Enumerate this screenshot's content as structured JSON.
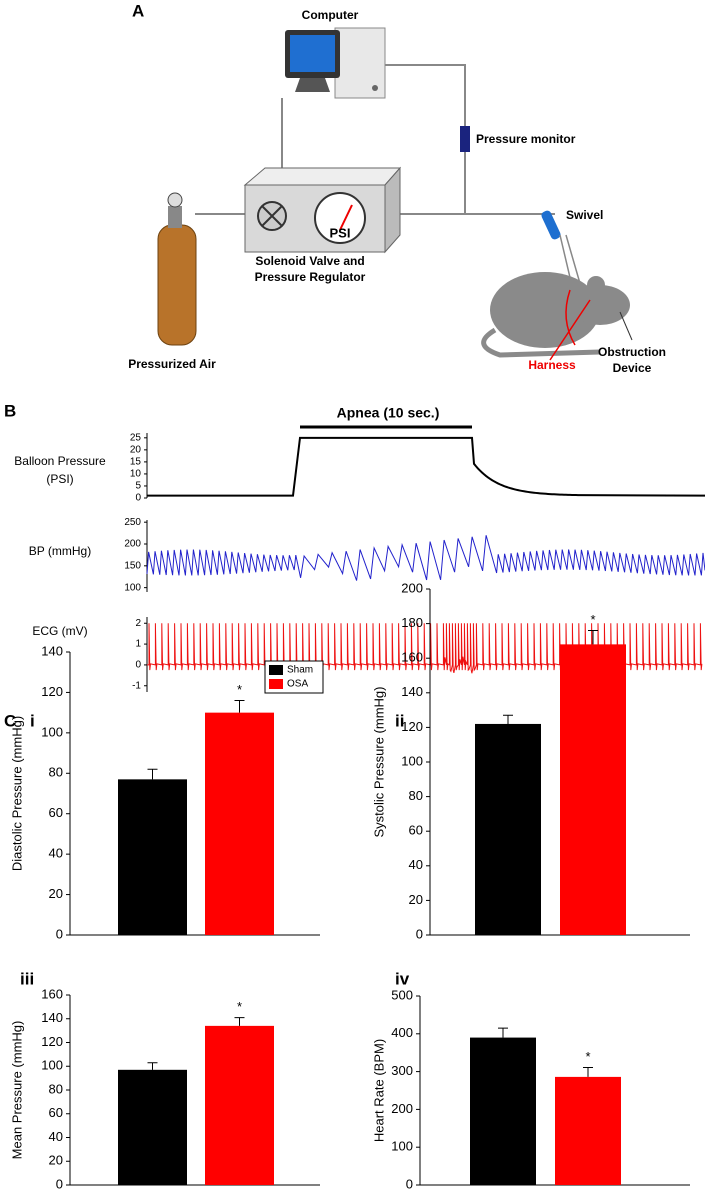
{
  "panel_a": {
    "label": "A",
    "computer": "Computer",
    "pressure_monitor": "Pressure monitor",
    "swivel": "Swivel",
    "valve_line1": "Solenoid Valve and",
    "valve_line2": "Pressure Regulator",
    "gauge": "PSI",
    "air": "Pressurized Air",
    "harness": "Harness",
    "device_line1": "Obstruction",
    "device_line2": "Device"
  },
  "panel_b": {
    "label": "B",
    "apnea": "Apnea (10 sec.)",
    "traces": [
      {
        "label_lines": [
          "Balloon Pressure",
          "(PSI)"
        ],
        "ylim": [
          0,
          27
        ],
        "yticks": [
          0,
          5,
          10,
          15,
          20,
          25
        ],
        "color": "#000000"
      },
      {
        "label_lines": [
          "BP (mmHg)"
        ],
        "ylim": [
          90,
          255
        ],
        "yticks": [
          100,
          150,
          200,
          250
        ],
        "color": "#2222cc"
      },
      {
        "label_lines": [
          "ECG (mV)"
        ],
        "ylim": [
          -1.3,
          2.3
        ],
        "yticks": [
          -1,
          0,
          1,
          2
        ],
        "color": "#ee1111"
      }
    ]
  },
  "panel_c_label": "C",
  "chart_data": [
    {
      "type": "bar",
      "panel": "i",
      "y_label": "Diastolic Pressure (mmHg)",
      "categories": [
        null
      ],
      "ylim": [
        0,
        140
      ],
      "yticks": [
        0,
        20,
        40,
        60,
        80,
        100,
        120,
        140
      ],
      "series": [
        {
          "name": "Sham",
          "color": "#000000",
          "values": [
            77
          ],
          "errors": [
            5
          ]
        },
        {
          "name": "OSA",
          "color": "#ff0000",
          "values": [
            110
          ],
          "errors": [
            6
          ],
          "annotations": [
            "*"
          ]
        }
      ]
    },
    {
      "type": "bar",
      "panel": "ii",
      "y_label": "Systolic Pressure (mmHg)",
      "categories": [
        null
      ],
      "ylim": [
        0,
        200
      ],
      "yticks": [
        0,
        20,
        40,
        60,
        80,
        100,
        120,
        140,
        160,
        180,
        200
      ],
      "series": [
        {
          "color": "#000000",
          "values": [
            122
          ],
          "errors": [
            5
          ]
        },
        {
          "color": "#ff0000",
          "values": [
            168
          ],
          "errors": [
            8
          ],
          "annotations": [
            "*"
          ]
        }
      ]
    },
    {
      "type": "bar",
      "panel": "iii",
      "y_label": "Mean Pressure (mmHg)",
      "categories": [
        null
      ],
      "ylim": [
        0,
        160
      ],
      "yticks": [
        0,
        20,
        40,
        60,
        80,
        100,
        120,
        140,
        160
      ],
      "series": [
        {
          "color": "#000000",
          "values": [
            97
          ],
          "errors": [
            6
          ]
        },
        {
          "color": "#ff0000",
          "values": [
            134
          ],
          "errors": [
            7
          ],
          "annotations": [
            "*"
          ]
        }
      ]
    },
    {
      "type": "bar",
      "panel": "iv",
      "y_label": "Heart Rate (BPM)",
      "categories": [
        null
      ],
      "ylim": [
        0,
        500
      ],
      "yticks": [
        0,
        100,
        200,
        300,
        400,
        500
      ],
      "series": [
        {
          "color": "#000000",
          "values": [
            390
          ],
          "errors": [
            25
          ]
        },
        {
          "color": "#ff0000",
          "values": [
            286
          ],
          "errors": [
            25
          ],
          "annotations": [
            "*"
          ]
        }
      ]
    }
  ]
}
